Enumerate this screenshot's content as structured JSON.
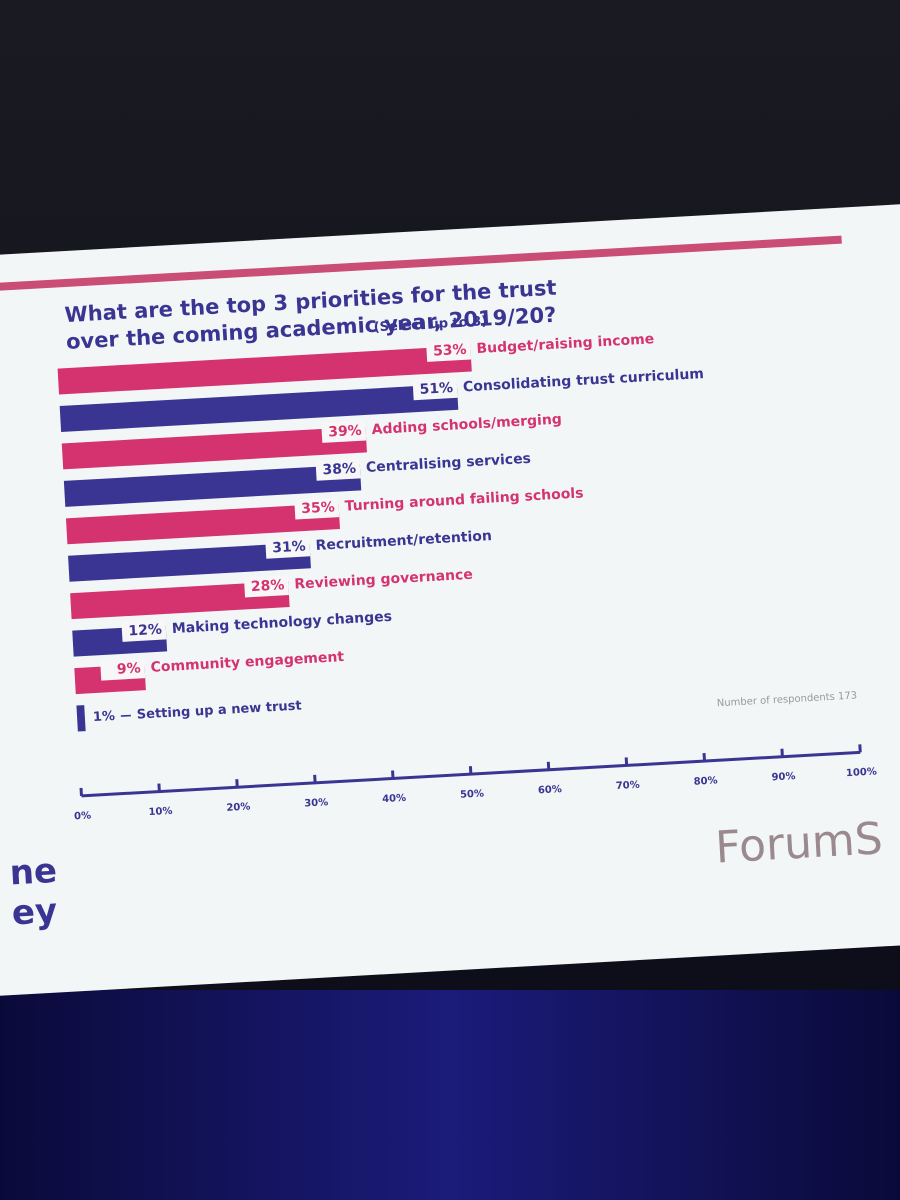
{
  "chart_data": {
    "type": "bar",
    "orientation": "horizontal",
    "title": "What are the top 3 priorities for the trust over the coming academic year, 2019/20?",
    "subtitle": "(Select up to 3)",
    "categories": [
      "Budget/raising income",
      "Consolidating trust curriculum",
      "Adding schools/merging",
      "Centralising services",
      "Turning around failing schools",
      "Recruitment/retention",
      "Reviewing governance",
      "Making technology changes",
      "Community engagement",
      "Setting up a new trust"
    ],
    "values": [
      53,
      51,
      39,
      38,
      35,
      31,
      28,
      12,
      9,
      1
    ],
    "value_labels": [
      "53%",
      "51%",
      "39%",
      "38%",
      "35%",
      "31%",
      "28%",
      "12%",
      "9%",
      "1%"
    ],
    "colors": [
      "#d4336f",
      "#3a3592",
      "#d4336f",
      "#3a3592",
      "#d4336f",
      "#3a3592",
      "#d4336f",
      "#3a3592",
      "#d4336f",
      "#3a3592"
    ],
    "xlim": [
      0,
      100
    ],
    "xticks": [
      {
        "value": 0,
        "label": "0%"
      },
      {
        "value": 10,
        "label": "10%"
      },
      {
        "value": 20,
        "label": "20%"
      },
      {
        "value": 30,
        "label": "30%"
      },
      {
        "value": 40,
        "label": "40%"
      },
      {
        "value": 50,
        "label": "50%"
      },
      {
        "value": 60,
        "label": "60%"
      },
      {
        "value": 70,
        "label": "70%"
      },
      {
        "value": 80,
        "label": "80%"
      },
      {
        "value": 90,
        "label": "90%"
      },
      {
        "value": 100,
        "label": "100%"
      }
    ],
    "annotation": "Number of respondents 173",
    "brand": "ForumS",
    "fragments": [
      "ne",
      "ey"
    ]
  }
}
